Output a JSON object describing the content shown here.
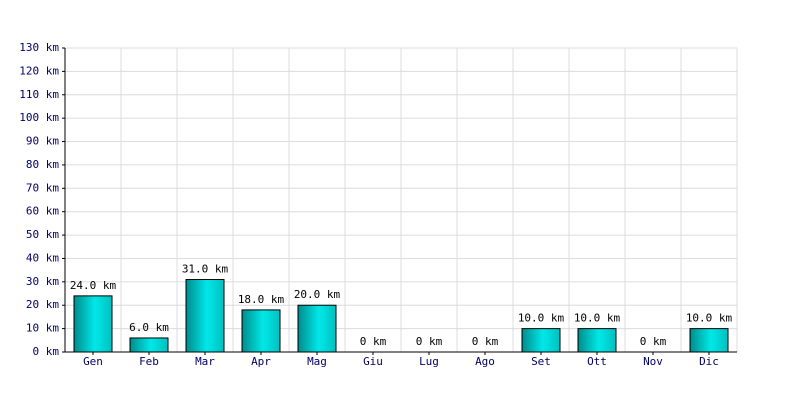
{
  "chart_data": {
    "type": "bar",
    "categories": [
      "Gen",
      "Feb",
      "Mar",
      "Apr",
      "Mag",
      "Giu",
      "Lug",
      "Ago",
      "Set",
      "Ott",
      "Nov",
      "Dic"
    ],
    "values": [
      24,
      6,
      31,
      18,
      20,
      0,
      0,
      0,
      10,
      10,
      0,
      10
    ],
    "value_labels": [
      "24.0 km",
      "6.0 km",
      "31.0 km",
      "18.0 km",
      "20.0 km",
      "0 km",
      "0 km",
      "0 km",
      "10.0 km",
      "10.0 km",
      "0 km",
      "10.0 km"
    ],
    "color": "#00d8d8",
    "ylim": [
      0,
      130
    ],
    "yticks": [
      {
        "value": 0,
        "label": "0 km"
      },
      {
        "value": 10,
        "label": "10 km"
      },
      {
        "value": 20,
        "label": "20 km"
      },
      {
        "value": 30,
        "label": "30 km"
      },
      {
        "value": 40,
        "label": "40 km"
      },
      {
        "value": 50,
        "label": "50 km"
      },
      {
        "value": 60,
        "label": "60 km"
      },
      {
        "value": 70,
        "label": "70 km"
      },
      {
        "value": 80,
        "label": "80 km"
      },
      {
        "value": 90,
        "label": "90 km"
      },
      {
        "value": 100,
        "label": "100 km"
      },
      {
        "value": 110,
        "label": "110 km"
      },
      {
        "value": 120,
        "label": "120 km"
      },
      {
        "value": 130,
        "label": "130 km"
      }
    ],
    "grid": true
  }
}
